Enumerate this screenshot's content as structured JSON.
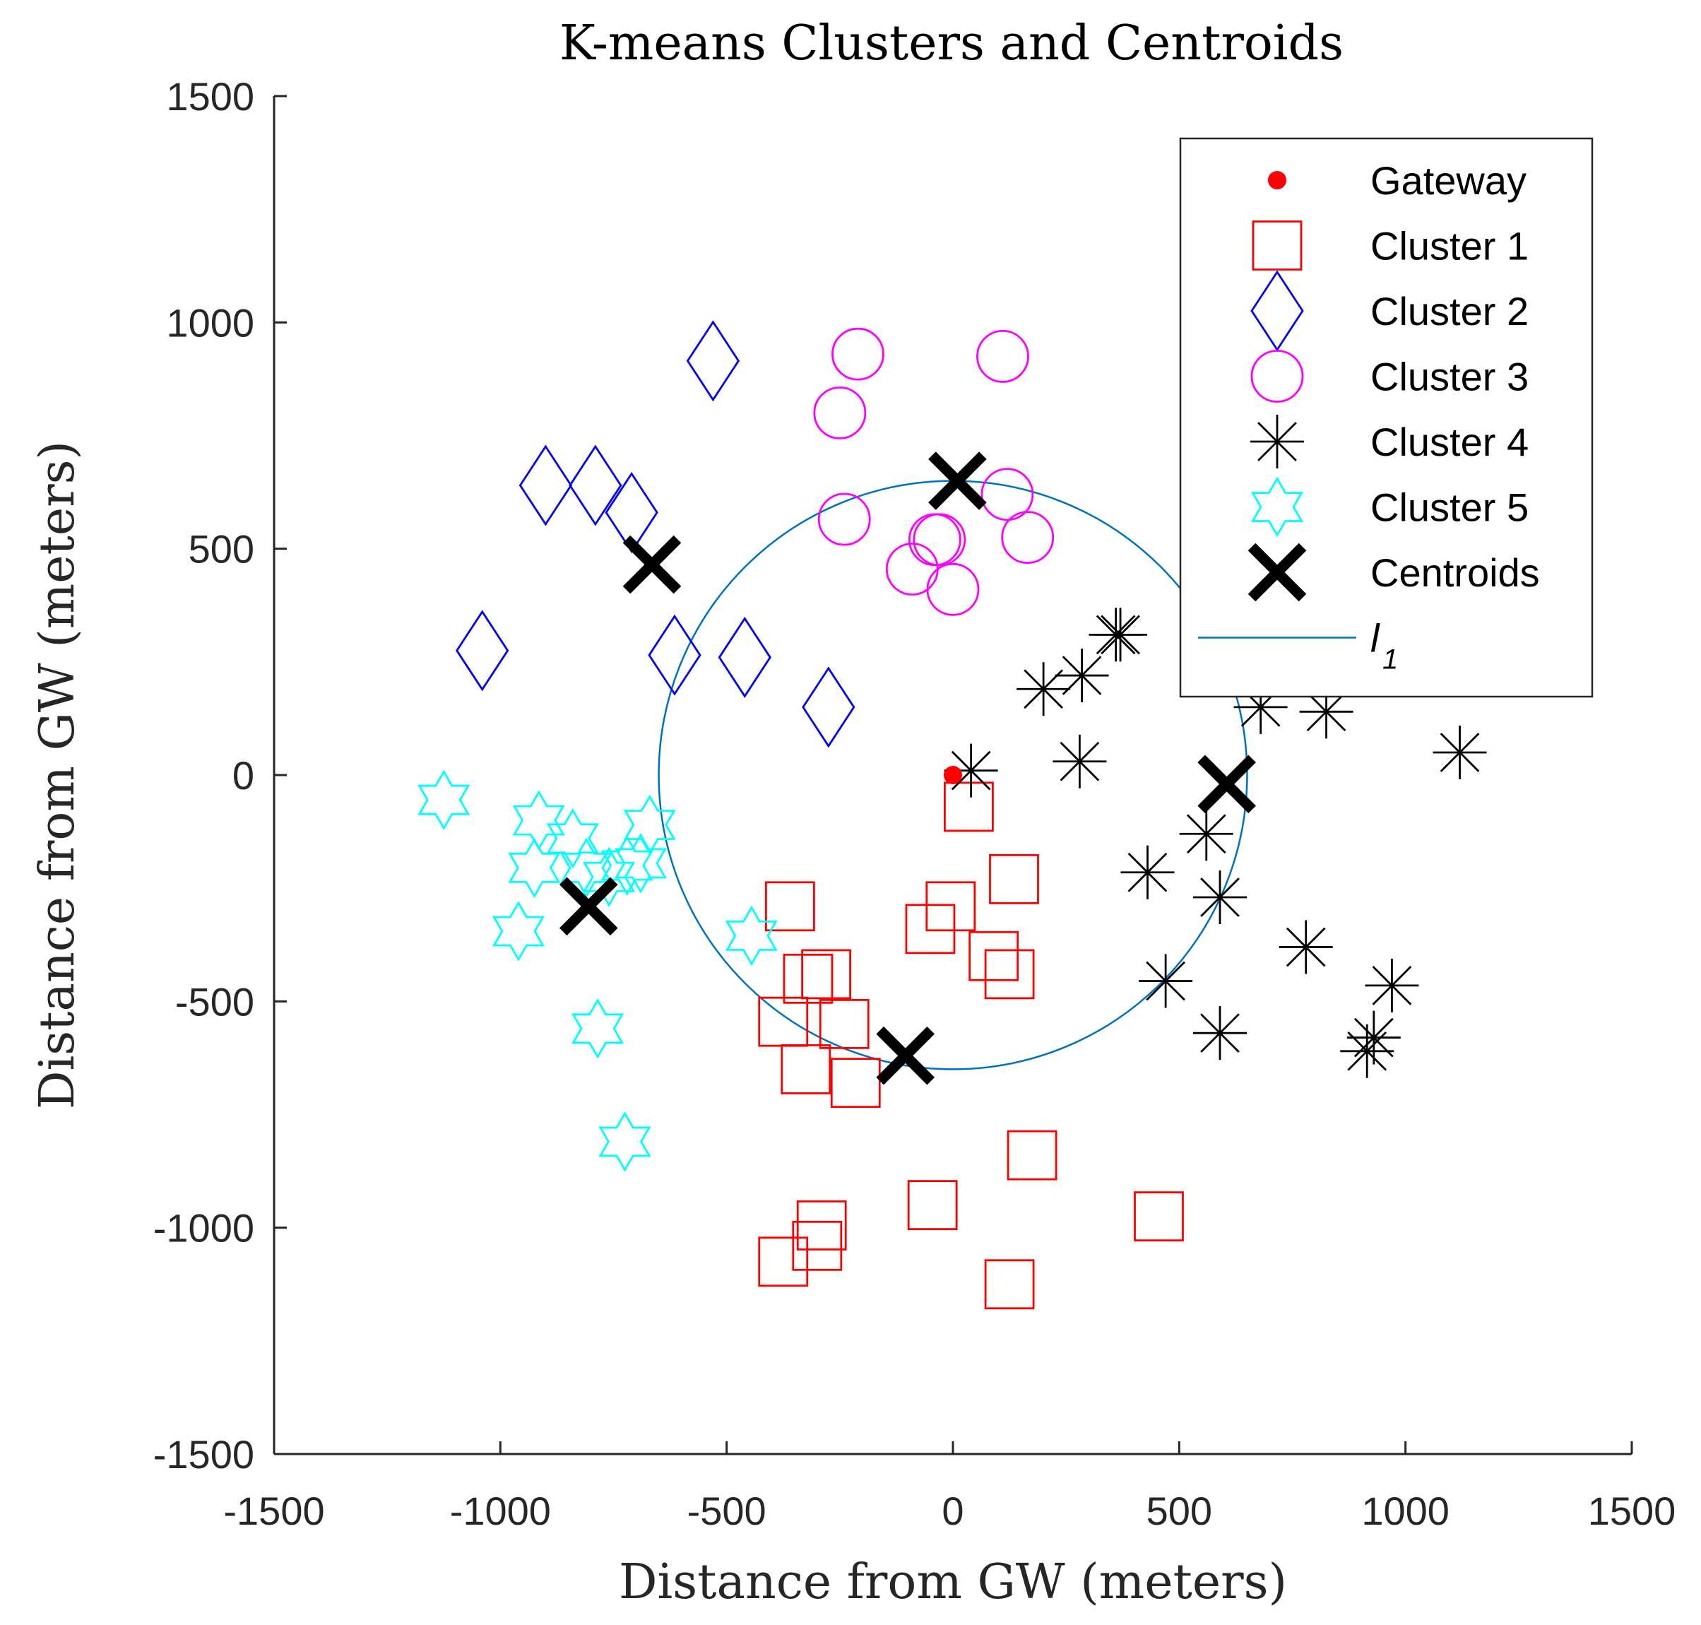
{
  "chart_data": {
    "type": "scatter",
    "title": "K-means Clusters and Centroids",
    "xlabel": "Distance from GW (meters)",
    "ylabel": "Distance from GW (meters)",
    "xlim": [
      -1500,
      1500
    ],
    "ylim": [
      -1500,
      1500
    ],
    "xticks": [
      -1500,
      -1000,
      -500,
      0,
      500,
      1000,
      1500
    ],
    "yticks": [
      -1500,
      -1000,
      -500,
      0,
      500,
      1000,
      1500
    ],
    "legend_position": "top-right",
    "circle": {
      "name": "l",
      "subscript": "1",
      "center": [
        0,
        0
      ],
      "radius": 650,
      "color": "#0072BD"
    },
    "series": [
      {
        "name": "Gateway",
        "marker": "dot",
        "color": "#FF0000",
        "points": [
          [
            0,
            0
          ]
        ]
      },
      {
        "name": "Cluster 1",
        "marker": "square",
        "color": "#FF0000",
        "points": [
          [
            35,
            -70
          ],
          [
            -5,
            -290
          ],
          [
            -50,
            -340
          ],
          [
            135,
            -230
          ],
          [
            90,
            -400
          ],
          [
            125,
            -440
          ],
          [
            -360,
            -290
          ],
          [
            -320,
            -450
          ],
          [
            -280,
            -440
          ],
          [
            -375,
            -545
          ],
          [
            -240,
            -550
          ],
          [
            -325,
            -650
          ],
          [
            -215,
            -680
          ],
          [
            -290,
            -995
          ],
          [
            -300,
            -1040
          ],
          [
            -375,
            -1075
          ],
          [
            -45,
            -950
          ],
          [
            175,
            -840
          ],
          [
            125,
            -1125
          ],
          [
            455,
            -975
          ]
        ]
      },
      {
        "name": "Cluster 2",
        "marker": "diamond",
        "color": "#0000FF",
        "points": [
          [
            -530,
            915
          ],
          [
            -900,
            640
          ],
          [
            -790,
            640
          ],
          [
            -710,
            580
          ],
          [
            -1040,
            275
          ],
          [
            -615,
            265
          ],
          [
            -460,
            260
          ],
          [
            -275,
            150
          ]
        ]
      },
      {
        "name": "Cluster 3",
        "marker": "circle",
        "color": "#FF00FF",
        "points": [
          [
            -210,
            930
          ],
          [
            110,
            925
          ],
          [
            -250,
            800
          ],
          [
            -240,
            565
          ],
          [
            120,
            620
          ],
          [
            165,
            525
          ],
          [
            -30,
            520
          ],
          [
            -40,
            520
          ],
          [
            -90,
            455
          ],
          [
            0,
            410
          ]
        ]
      },
      {
        "name": "Cluster 4",
        "marker": "asterisk",
        "color": "#000000",
        "points": [
          [
            360,
            310
          ],
          [
            370,
            310
          ],
          [
            200,
            190
          ],
          [
            285,
            220
          ],
          [
            280,
            30
          ],
          [
            40,
            10
          ],
          [
            680,
            150
          ],
          [
            825,
            140
          ],
          [
            1120,
            50
          ],
          [
            560,
            -130
          ],
          [
            430,
            -215
          ],
          [
            590,
            -270
          ],
          [
            780,
            -380
          ],
          [
            470,
            -455
          ],
          [
            970,
            -465
          ],
          [
            590,
            -570
          ],
          [
            930,
            -580
          ],
          [
            915,
            -610
          ]
        ]
      },
      {
        "name": "Cluster 5",
        "marker": "hexagram",
        "color": "#00FFFF",
        "points": [
          [
            -1125,
            -55
          ],
          [
            -915,
            -100
          ],
          [
            -840,
            -140
          ],
          [
            -670,
            -110
          ],
          [
            -925,
            -205
          ],
          [
            -810,
            -205
          ],
          [
            -720,
            -200
          ],
          [
            -690,
            -195
          ],
          [
            -760,
            -225
          ],
          [
            -960,
            -345
          ],
          [
            -445,
            -355
          ],
          [
            -785,
            -560
          ],
          [
            -725,
            -810
          ]
        ]
      },
      {
        "name": "Centroids",
        "marker": "x",
        "color": "#000000",
        "points": [
          [
            10,
            650
          ],
          [
            -665,
            465
          ],
          [
            605,
            -20
          ],
          [
            -805,
            -290
          ],
          [
            -105,
            -620
          ]
        ]
      }
    ],
    "legend_last": {
      "name": "l",
      "subscript": "1"
    }
  }
}
